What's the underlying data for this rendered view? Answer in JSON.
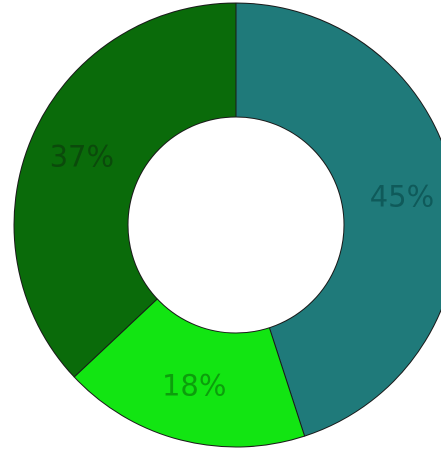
{
  "chart_data": {
    "type": "pie",
    "style": "donut",
    "slices": [
      {
        "value": 45,
        "label": "45%",
        "color": "#1f7a7a",
        "label_color": "#0f5a5a"
      },
      {
        "value": 18,
        "label": "18%",
        "color": "#12e512",
        "label_color": "#0c9e0c"
      },
      {
        "value": 37,
        "label": "37%",
        "color": "#0a6b0a",
        "label_color": "#0b4a0b"
      }
    ],
    "border_color": "#1a1a1a",
    "hole_color": "#ffffff",
    "start_angle": "top",
    "direction": "clockwise"
  }
}
